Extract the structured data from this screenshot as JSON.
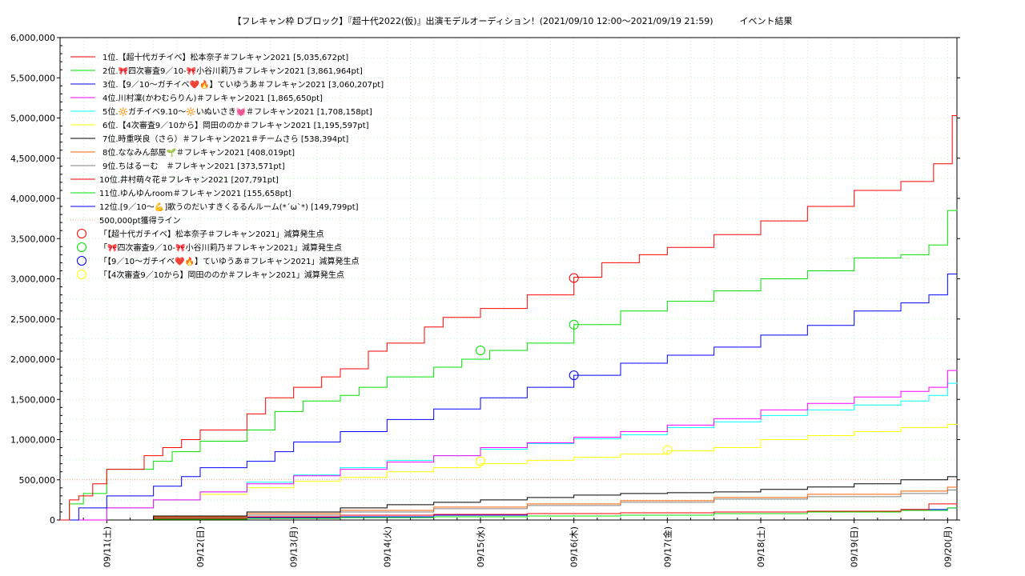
{
  "chart_data": {
    "type": "line",
    "title": "【フレキャン枠 Dブロック】『超十代2022(仮)』出演モデルオーディション！(2021/09/10 12:00〜2021/09/19 21:59)　　　イベント結果",
    "ylim": [
      0,
      6000000
    ],
    "xlim": [
      0,
      9.6
    ],
    "grid": true,
    "legend_placement": "top-left",
    "y_ticks": [
      0,
      500000,
      1000000,
      1500000,
      2000000,
      2500000,
      3000000,
      3500000,
      4000000,
      4500000,
      5000000,
      5500000,
      6000000
    ],
    "y_tick_labels": [
      "0",
      "500,000",
      "1,000,000",
      "1,500,000",
      "2,000,000",
      "2,500,000",
      "3,000,000",
      "3,500,000",
      "4,000,000",
      "4,500,000",
      "5,000,000",
      "5,500,000",
      "6,000,000"
    ],
    "x_ticks": [
      0.5,
      1.5,
      2.5,
      3.5,
      4.5,
      5.5,
      6.5,
      7.5,
      8.5,
      9.5
    ],
    "x_tick_labels": [
      "09/11(土)",
      "09/12(日)",
      "09/13(月)",
      "09/14(火)",
      "09/15(水)",
      "09/16(木)",
      "09/17(金)",
      "09/18(土)",
      "09/19(日)",
      "09/20(月)"
    ],
    "series": [
      {
        "name": "1位.【超十代ガチイベ】松本奈子＃フレキャン2021 [5,035,672pt]",
        "color": "#ff0000",
        "x": [
          0,
          0.1,
          0.2,
          0.35,
          0.5,
          0.9,
          1.1,
          1.3,
          1.5,
          2.0,
          2.2,
          2.5,
          2.8,
          3.0,
          3.3,
          3.5,
          3.9,
          4.1,
          4.5,
          5.0,
          5.5,
          5.8,
          6.2,
          6.5,
          7.0,
          7.5,
          8.0,
          8.5,
          9.0,
          9.35,
          9.55,
          9.6
        ],
        "y": [
          0,
          250000,
          300000,
          450000,
          630000,
          800000,
          900000,
          1000000,
          1120000,
          1320000,
          1520000,
          1650000,
          1780000,
          1880000,
          2100000,
          2200000,
          2400000,
          2520000,
          2630000,
          2800000,
          3020000,
          3200000,
          3300000,
          3390000,
          3550000,
          3720000,
          3900000,
          4100000,
          4210000,
          4430000,
          5030000,
          5035672
        ]
      },
      {
        "name": "2位.🎀四次審査9／10-🎀小谷川莉乃＃フレキャン2021 [3,861,964pt]",
        "color": "#00e000",
        "x": [
          0,
          0.1,
          0.25,
          0.5,
          1.0,
          1.2,
          1.5,
          2.0,
          2.3,
          2.6,
          3.0,
          3.2,
          3.5,
          4.0,
          4.3,
          4.6,
          5.0,
          5.5,
          6.0,
          6.5,
          7.0,
          7.5,
          8.0,
          8.5,
          9.0,
          9.3,
          9.5,
          9.6
        ],
        "y": [
          0,
          200000,
          330000,
          630000,
          730000,
          850000,
          980000,
          1120000,
          1350000,
          1480000,
          1550000,
          1650000,
          1780000,
          1900000,
          2000000,
          2110000,
          2200000,
          2430000,
          2600000,
          2720000,
          2850000,
          3000000,
          3100000,
          3260000,
          3300000,
          3420000,
          3850000,
          3861964
        ]
      },
      {
        "name": "3位.【9／10〜ガチイベ❤️🔥】ていゆうあ＃フレキャン2021 [3,060,207pt]",
        "color": "#0000ff",
        "x": [
          0,
          0.2,
          0.5,
          1.0,
          1.3,
          1.5,
          2.0,
          2.3,
          2.5,
          3.0,
          3.5,
          4.0,
          4.5,
          5.0,
          5.5,
          6.0,
          6.5,
          7.0,
          7.5,
          8.0,
          8.5,
          9.0,
          9.3,
          9.5,
          9.6
        ],
        "y": [
          0,
          150000,
          300000,
          420000,
          540000,
          650000,
          730000,
          850000,
          970000,
          1100000,
          1250000,
          1380000,
          1520000,
          1650000,
          1800000,
          1950000,
          2050000,
          2150000,
          2300000,
          2420000,
          2600000,
          2700000,
          2800000,
          3060000,
          3060207
        ]
      },
      {
        "name": "4位.川村凜(かわむらりん)＃フレキャン2021 [1,865,650pt]",
        "color": "#ff00ff",
        "x": [
          0,
          0.5,
          1.0,
          1.5,
          2.0,
          2.5,
          3.0,
          3.5,
          4.0,
          4.5,
          5.0,
          5.5,
          6.0,
          6.5,
          7.0,
          7.5,
          8.0,
          8.5,
          9.0,
          9.3,
          9.5,
          9.6
        ],
        "y": [
          0,
          150000,
          250000,
          350000,
          450000,
          550000,
          630000,
          720000,
          800000,
          900000,
          960000,
          1030000,
          1100000,
          1180000,
          1260000,
          1370000,
          1450000,
          1530000,
          1600000,
          1650000,
          1860000,
          1865650
        ]
      },
      {
        "name": "5位.🔆ガチイベ9.10〜🔆いぬいさき💓＃フレキャン2021 [1,708,158pt]",
        "color": "#00ffff",
        "x": [
          0,
          0.5,
          1.0,
          1.5,
          2.0,
          2.5,
          3.0,
          3.5,
          4.0,
          4.5,
          5.0,
          5.5,
          6.0,
          6.5,
          7.0,
          7.5,
          8.0,
          8.5,
          9.0,
          9.3,
          9.5,
          9.6
        ],
        "y": [
          0,
          150000,
          250000,
          350000,
          470000,
          560000,
          650000,
          740000,
          800000,
          880000,
          950000,
          1010000,
          1060000,
          1150000,
          1220000,
          1300000,
          1370000,
          1430000,
          1480000,
          1550000,
          1700000,
          1708158
        ]
      },
      {
        "name": "6位.【4次審査9／10から】岡田ののか＃フレキャン2021 [1,195,597pt]",
        "color": "#ffff00",
        "x": [
          0,
          0.5,
          1.0,
          1.5,
          2.0,
          2.5,
          3.0,
          3.5,
          4.0,
          4.5,
          5.0,
          5.5,
          6.0,
          6.5,
          7.0,
          7.5,
          8.0,
          8.5,
          9.0,
          9.5,
          9.6
        ],
        "y": [
          0,
          150000,
          250000,
          320000,
          400000,
          480000,
          530000,
          600000,
          650000,
          700000,
          740000,
          780000,
          820000,
          860000,
          900000,
          1000000,
          1050000,
          1100000,
          1150000,
          1190000,
          1195597
        ]
      },
      {
        "name": "7位.時重咲良（さら）＃フレキャン2021＃チームさら [538,394pt]",
        "color": "#000000",
        "x": [
          0,
          1.0,
          2.0,
          3.0,
          3.5,
          4.0,
          4.5,
          5.0,
          5.5,
          6.0,
          6.5,
          7.0,
          7.5,
          8.0,
          8.5,
          9.0,
          9.5,
          9.6
        ],
        "y": [
          0,
          50000,
          100000,
          150000,
          190000,
          220000,
          250000,
          280000,
          310000,
          330000,
          340000,
          350000,
          380000,
          410000,
          450000,
          500000,
          538000,
          538394
        ]
      },
      {
        "name": "8位.ななみん部屋🌱＃フレキャン2021 [408,019pt]",
        "color": "#ff6000",
        "x": [
          0,
          1.0,
          2.0,
          3.0,
          4.0,
          5.0,
          6.0,
          7.0,
          8.0,
          9.0,
          9.5,
          9.6
        ],
        "y": [
          0,
          40000,
          80000,
          120000,
          160000,
          200000,
          240000,
          280000,
          320000,
          360000,
          408000,
          408019
        ]
      },
      {
        "name": "9位.ちはるーむ　＃フレキャン2021 [373,571pt]",
        "color": "#808080",
        "x": [
          0,
          1.0,
          2.0,
          3.0,
          4.0,
          5.0,
          6.0,
          7.0,
          8.0,
          9.0,
          9.5,
          9.6
        ],
        "y": [
          0,
          30000,
          60000,
          100000,
          140000,
          180000,
          220000,
          260000,
          290000,
          330000,
          373000,
          373571
        ]
      },
      {
        "name": "10位.井村萌々花＃フレキャン2021 [207,791pt]",
        "color": "#ff0000",
        "x": [
          0,
          1.0,
          2.0,
          3.0,
          4.0,
          5.0,
          6.0,
          7.0,
          8.0,
          9.0,
          9.3,
          9.6
        ],
        "y": [
          0,
          20000,
          40000,
          60000,
          70000,
          80000,
          90000,
          100000,
          110000,
          130000,
          200000,
          207791
        ]
      },
      {
        "name": "11位.ゆんゆんroom＃フレキャン2021 [155,658pt]",
        "color": "#00e000",
        "x": [
          0,
          1.0,
          2.0,
          3.0,
          4.0,
          5.0,
          6.0,
          7.0,
          8.0,
          9.0,
          9.5,
          9.6
        ],
        "y": [
          0,
          10000,
          20000,
          30000,
          40000,
          50000,
          60000,
          80000,
          100000,
          120000,
          150000,
          155658
        ]
      },
      {
        "name": "12位.[9／10〜💪]歌うのだいすきくるるんルーム(*´ω`*) [149,799pt]",
        "color": "#0000ff",
        "x": [
          0,
          1.0,
          2.0,
          3.0,
          4.0,
          5.0,
          6.0,
          7.0,
          8.0,
          9.0,
          9.5,
          9.6
        ],
        "y": [
          0,
          20000,
          30000,
          40000,
          60000,
          80000,
          90000,
          100000,
          110000,
          130000,
          149000,
          149799
        ]
      }
    ],
    "reference_line": {
      "name": "500,000pt獲得ライン",
      "value": 500000,
      "color": "#ffa0a0"
    },
    "markers": [
      {
        "name": "「【超十代ガチイベ】松本奈子＃フレキャン2021」減算発生点",
        "color": "#ff0000",
        "points": [
          [
            5.5,
            3010000
          ]
        ]
      },
      {
        "name": "「🎀四次審査9／10-🎀小谷川莉乃＃フレキャン2021」減算発生点",
        "color": "#00e000",
        "points": [
          [
            4.5,
            2110000
          ],
          [
            5.5,
            2430000
          ]
        ]
      },
      {
        "name": "「【9／10〜ガチイベ❤️🔥】ていゆうあ＃フレキャン2021」減算発生点",
        "color": "#0000ff",
        "points": [
          [
            5.5,
            1800000
          ]
        ]
      },
      {
        "name": "「【4次審査9／10から】岡田ののか＃フレキャン2021」減算発生点",
        "color": "#ffff00",
        "points": [
          [
            4.5,
            730000
          ],
          [
            6.5,
            870000
          ]
        ]
      }
    ]
  }
}
